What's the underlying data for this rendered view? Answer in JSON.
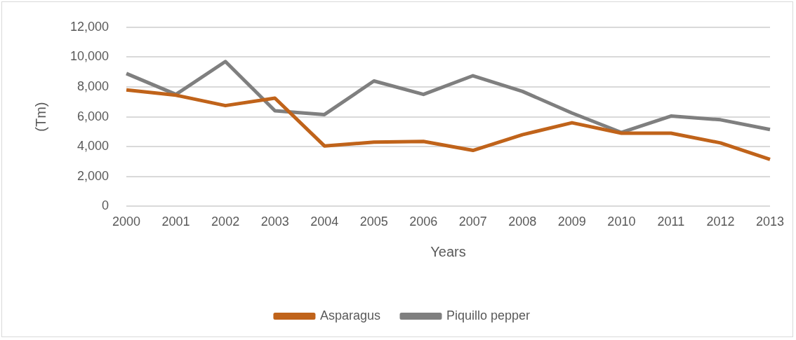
{
  "chart_data": {
    "type": "line",
    "xlabel": "Years",
    "ylabel": "(Tm)",
    "categories": [
      "2000",
      "2001",
      "2002",
      "2003",
      "2004",
      "2005",
      "2006",
      "2007",
      "2008",
      "2009",
      "2010",
      "2011",
      "2012",
      "2013"
    ],
    "series": [
      {
        "name": "Asparagus",
        "color": "#c0631a",
        "values": [
          7800,
          7450,
          6750,
          7250,
          4050,
          4300,
          4350,
          3750,
          4800,
          5600,
          4900,
          4900,
          4250,
          3150
        ]
      },
      {
        "name": "Piquillo pepper",
        "color": "#7f7f7f",
        "values": [
          8900,
          7500,
          9700,
          6400,
          6150,
          8400,
          7500,
          8750,
          7700,
          6250,
          4950,
          6050,
          5800,
          5150
        ]
      }
    ],
    "ylim": [
      0,
      12000
    ],
    "yticks": [
      0,
      {
        "value": 2000,
        "label": "2,000"
      },
      {
        "value": 4000,
        "label": "4,000"
      },
      {
        "value": 6000,
        "label": "6,000"
      },
      {
        "value": 8000,
        "label": "8,000"
      },
      {
        "value": 10000,
        "label": "10,000"
      },
      {
        "value": 12000,
        "label": "12,000"
      }
    ],
    "grid": "y",
    "legend": "bottom",
    "marker": "none",
    "line_style": "solid"
  }
}
